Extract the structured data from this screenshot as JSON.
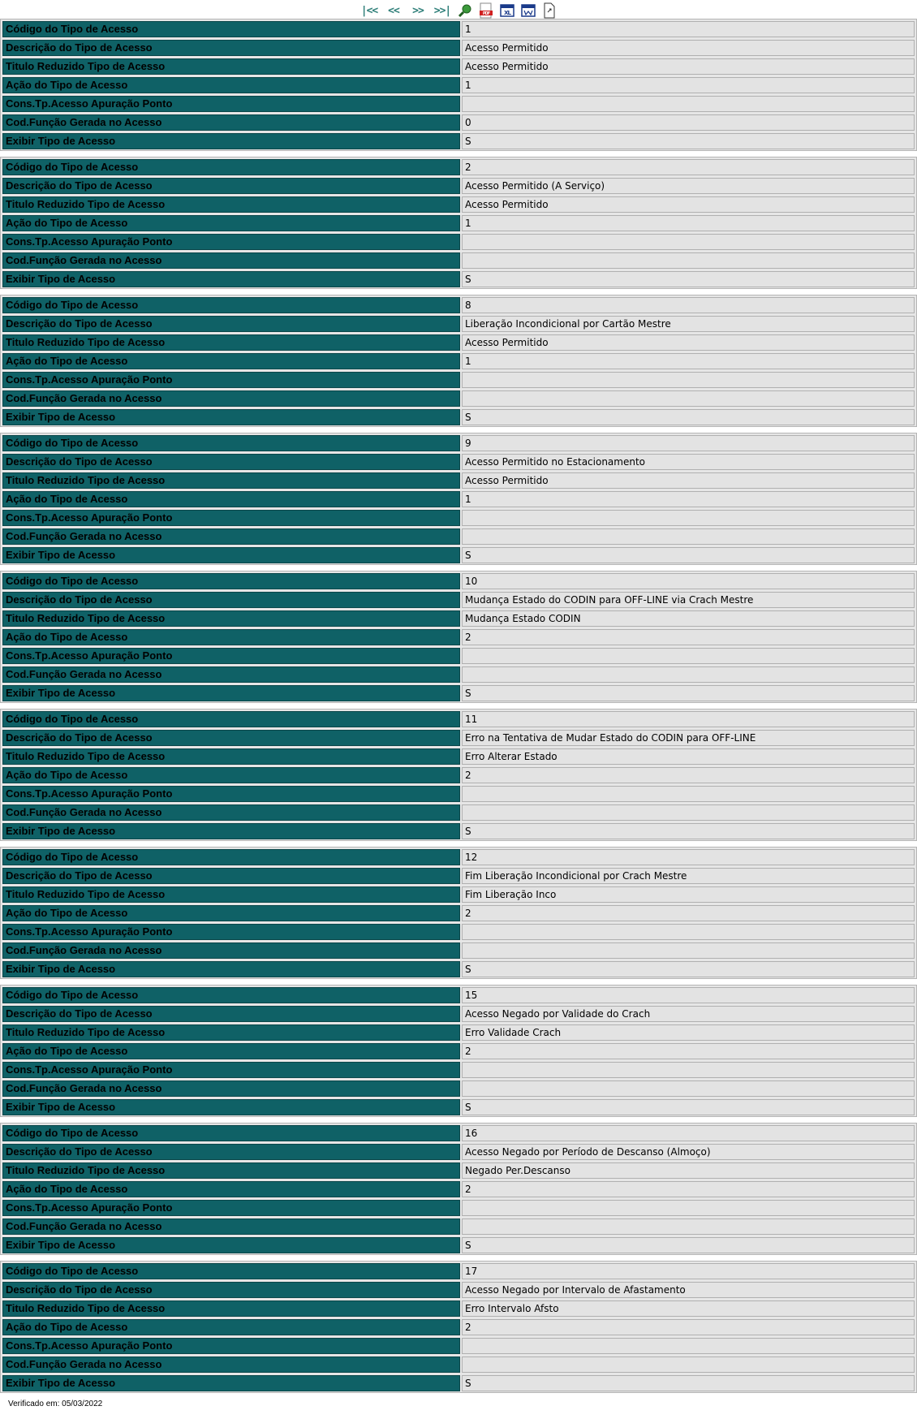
{
  "toolbar": {
    "first": "|<<",
    "prev": "<<",
    "next": ">>",
    "last": ">>|"
  },
  "labels": {
    "codigo": "Código do Tipo de Acesso",
    "descricao": "Descrição do Tipo de Acesso",
    "titulo": "Titulo Reduzido Tipo de Acesso",
    "acao": "Ação do Tipo de Acesso",
    "cons": "Cons.Tp.Acesso Apuração Ponto",
    "codfuncao": "Cod.Função Gerada no Acesso",
    "exibir": "Exibir Tipo de Acesso"
  },
  "records": [
    {
      "codigo": "1",
      "descricao": "Acesso Permitido",
      "titulo": "Acesso Permitido",
      "acao": "1",
      "cons": "",
      "codfuncao": "0",
      "exibir": "S"
    },
    {
      "codigo": "2",
      "descricao": "Acesso Permitido (A Serviço)",
      "titulo": "Acesso Permitido",
      "acao": "1",
      "cons": "",
      "codfuncao": "",
      "exibir": "S"
    },
    {
      "codigo": "8",
      "descricao": "Liberação Incondicional por Cartão Mestre",
      "titulo": "Acesso Permitido",
      "acao": "1",
      "cons": "",
      "codfuncao": "",
      "exibir": "S"
    },
    {
      "codigo": "9",
      "descricao": "Acesso Permitido no Estacionamento",
      "titulo": "Acesso Permitido",
      "acao": "1",
      "cons": "",
      "codfuncao": "",
      "exibir": "S"
    },
    {
      "codigo": "10",
      "descricao": "Mudança Estado do CODIN para OFF-LINE via Crach  Mestre",
      "titulo": "Mudança Estado CODIN",
      "acao": "2",
      "cons": "",
      "codfuncao": "",
      "exibir": "S"
    },
    {
      "codigo": "11",
      "descricao": "Erro na Tentativa de Mudar Estado do CODIN para OFF-LINE",
      "titulo": "Erro Alterar Estado",
      "acao": "2",
      "cons": "",
      "codfuncao": "",
      "exibir": "S"
    },
    {
      "codigo": "12",
      "descricao": "Fim Liberação Incondicional por Crach  Mestre",
      "titulo": "Fim Liberação Inco",
      "acao": "2",
      "cons": "",
      "codfuncao": "",
      "exibir": "S"
    },
    {
      "codigo": "15",
      "descricao": "Acesso Negado por Validade do Crach",
      "titulo": "Erro Validade Crach",
      "acao": "2",
      "cons": "",
      "codfuncao": "",
      "exibir": "S"
    },
    {
      "codigo": "16",
      "descricao": "Acesso Negado por Período de Descanso (Almoço)",
      "titulo": "Negado Per.Descanso",
      "acao": "2",
      "cons": "",
      "codfuncao": "",
      "exibir": "S"
    },
    {
      "codigo": "17",
      "descricao": "Acesso Negado por Intervalo de Afastamento",
      "titulo": "Erro Intervalo Afsto",
      "acao": "2",
      "cons": "",
      "codfuncao": "",
      "exibir": "S"
    }
  ],
  "footer": "Verificado em: 05/03/2022"
}
